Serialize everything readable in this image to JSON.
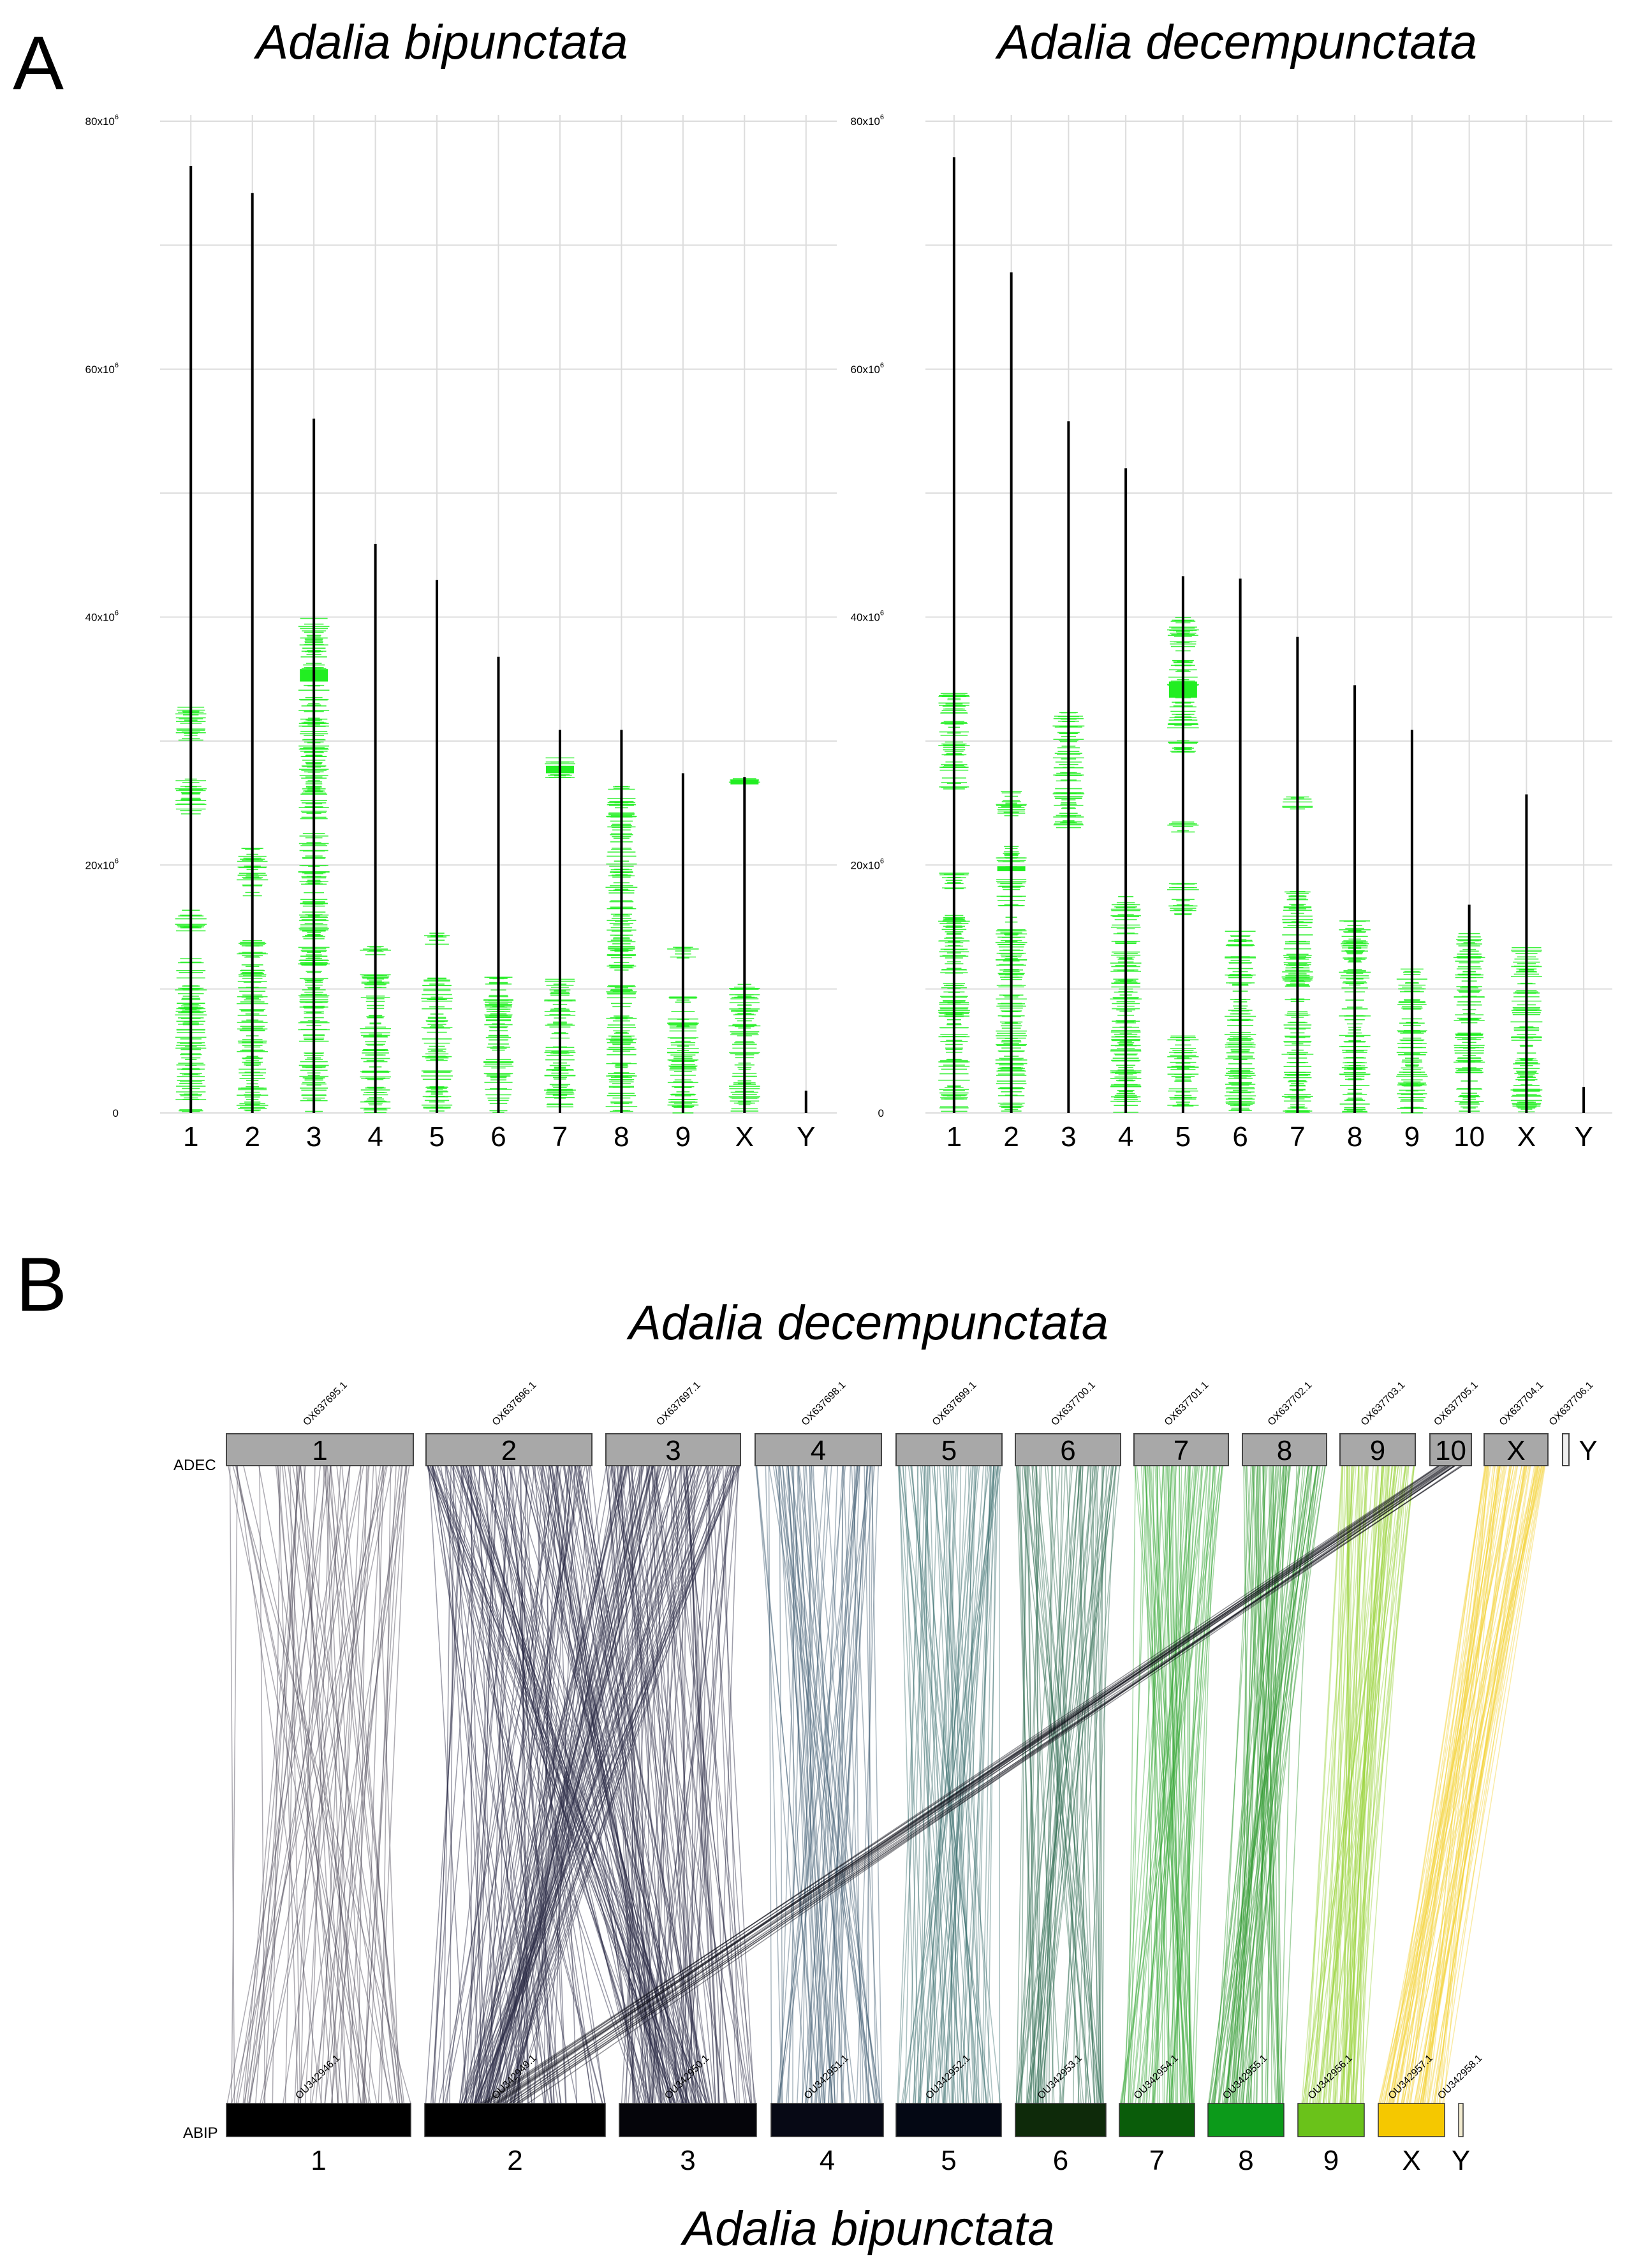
{
  "panels": {
    "a_label": "A",
    "b_label": "B"
  },
  "chart_data": [
    {
      "type": "chromosome_density",
      "title": "Adalia bipunctata",
      "ylim": [
        0,
        80000000
      ],
      "ytick_values": [
        0,
        20000000,
        40000000,
        60000000,
        80000000
      ],
      "ytick_labels": [
        "0",
        "20x10",
        "40x10",
        "60x10",
        "80x10"
      ],
      "ytick_exponent": "6",
      "categories": [
        "1",
        "2",
        "3",
        "4",
        "5",
        "6",
        "7",
        "8",
        "9",
        "X",
        "Y"
      ],
      "lengths": [
        76400000,
        74200000,
        56000000,
        45900000,
        43000000,
        36800000,
        30900000,
        30900000,
        27400000,
        27100000,
        1800000
      ],
      "marker_color": "#22ee22",
      "marker_bands": [
        {
          "chrom": "1",
          "ranges": [
            [
              0,
              12500000
            ],
            [
              14500000,
              16500000
            ],
            [
              24000000,
              27000000
            ],
            [
              30000000,
              33000000
            ]
          ]
        },
        {
          "chrom": "2",
          "ranges": [
            [
              0,
              14000000
            ],
            [
              17500000,
              21500000
            ]
          ]
        },
        {
          "chrom": "3",
          "ranges": [
            [
              0,
              13500000
            ],
            [
              14000000,
              40000000
            ]
          ],
          "dense": [
            34800000,
            35800000
          ]
        },
        {
          "chrom": "4",
          "ranges": [
            [
              0,
              11500000
            ],
            [
              12500000,
              13500000
            ]
          ]
        },
        {
          "chrom": "5",
          "ranges": [
            [
              0,
              11000000
            ],
            [
              13500000,
              14500000
            ]
          ]
        },
        {
          "chrom": "6",
          "ranges": [
            [
              0,
              11000000
            ]
          ]
        },
        {
          "chrom": "7",
          "ranges": [
            [
              0,
              11000000
            ],
            [
              27000000,
              28800000
            ]
          ],
          "dense": [
            27400000,
            28000000
          ]
        },
        {
          "chrom": "8",
          "ranges": [
            [
              0,
              10500000
            ],
            [
              11500000,
              26500000
            ]
          ]
        },
        {
          "chrom": "9",
          "ranges": [
            [
              0,
              9500000
            ],
            [
              12500000,
              13500000
            ]
          ]
        },
        {
          "chrom": "X",
          "ranges": [
            [
              0,
              10500000
            ],
            [
              26500000,
              27000000
            ]
          ],
          "dense": [
            26500000,
            26900000
          ]
        }
      ]
    },
    {
      "type": "chromosome_density",
      "title": "Adalia decempunctata",
      "ylim": [
        0,
        80000000
      ],
      "ytick_values": [
        0,
        20000000,
        40000000,
        60000000,
        80000000
      ],
      "ytick_labels": [
        "0",
        "20x10",
        "40x10",
        "60x10",
        "80x10"
      ],
      "ytick_exponent": "6",
      "categories": [
        "1",
        "2",
        "3",
        "4",
        "5",
        "6",
        "7",
        "8",
        "9",
        "10",
        "X",
        "Y"
      ],
      "lengths": [
        77100000,
        67800000,
        55800000,
        52000000,
        43300000,
        43100000,
        38400000,
        34500000,
        30900000,
        16800000,
        25700000,
        2100000
      ],
      "marker_color": "#22ee22",
      "marker_bands": [
        {
          "chrom": "1",
          "ranges": [
            [
              0,
              16000000
            ],
            [
              18000000,
              19500000
            ],
            [
              26000000,
              34000000
            ]
          ]
        },
        {
          "chrom": "2",
          "ranges": [
            [
              0,
              21500000
            ],
            [
              23500000,
              26000000
            ]
          ],
          "dense": [
            19500000,
            19900000
          ]
        },
        {
          "chrom": "3",
          "ranges": [
            [
              23000000,
              32500000
            ]
          ]
        },
        {
          "chrom": "4",
          "ranges": [
            [
              0,
              17500000
            ]
          ]
        },
        {
          "chrom": "5",
          "ranges": [
            [
              0,
              6500000
            ],
            [
              16000000,
              18500000
            ],
            [
              22500000,
              23500000
            ],
            [
              28500000,
              40000000
            ]
          ],
          "dense": [
            33500000,
            34800000
          ]
        },
        {
          "chrom": "6",
          "ranges": [
            [
              0,
              15000000
            ]
          ]
        },
        {
          "chrom": "7",
          "ranges": [
            [
              0,
              18000000
            ],
            [
              24500000,
              25500000
            ]
          ]
        },
        {
          "chrom": "8",
          "ranges": [
            [
              0,
              15500000
            ]
          ]
        },
        {
          "chrom": "9",
          "ranges": [
            [
              0,
              12000000
            ]
          ]
        },
        {
          "chrom": "10",
          "ranges": [
            [
              0,
              14500000
            ]
          ]
        },
        {
          "chrom": "X",
          "ranges": [
            [
              0,
              13500000
            ]
          ]
        }
      ]
    },
    {
      "type": "synteny",
      "title_top": "Adalia decempunctata",
      "title_bottom": "Adalia bipunctata",
      "top_label": "ADEC",
      "bottom_label": "ABIP",
      "top_chromosomes": [
        {
          "label": "1",
          "acc": "OX637695.1",
          "length": 77100000
        },
        {
          "label": "2",
          "acc": "OX637696.1",
          "length": 67800000
        },
        {
          "label": "3",
          "acc": "OX637697.1",
          "length": 55800000
        },
        {
          "label": "4",
          "acc": "OX637698.1",
          "length": 52000000
        },
        {
          "label": "5",
          "acc": "OX637699.1",
          "length": 43300000
        },
        {
          "label": "6",
          "acc": "OX637700.1",
          "length": 43100000
        },
        {
          "label": "7",
          "acc": "OX637701.1",
          "length": 38400000
        },
        {
          "label": "8",
          "acc": "OX637702.1",
          "length": 34500000
        },
        {
          "label": "9",
          "acc": "OX637703.1",
          "length": 30900000
        },
        {
          "label": "10",
          "acc": "OX637705.1",
          "length": 16800000
        },
        {
          "label": "X",
          "acc": "OX637704.1",
          "length": 25700000
        },
        {
          "label": "Y",
          "acc": "OX637706.1",
          "length": 2100000
        }
      ],
      "bottom_chromosomes": [
        {
          "label": "1",
          "acc": "OU342946.1",
          "length": 76400000,
          "color": "#000000"
        },
        {
          "label": "2",
          "acc": "OU342949.1",
          "length": 74200000,
          "color": "#000000"
        },
        {
          "label": "3",
          "acc": "OU342950.1",
          "length": 56000000,
          "color": "#05050a"
        },
        {
          "label": "4",
          "acc": "OU342951.1",
          "length": 45900000,
          "color": "#070915"
        },
        {
          "label": "5",
          "acc": "OU342952.1",
          "length": 43000000,
          "color": "#040814"
        },
        {
          "label": "6",
          "acc": "OU342953.1",
          "length": 36800000,
          "color": "#0e2a0a"
        },
        {
          "label": "7",
          "acc": "OU342954.1",
          "length": 30900000,
          "color": "#0a5c0a"
        },
        {
          "label": "8",
          "acc": "OU342955.1",
          "length": 30900000,
          "color": "#0c9a1a"
        },
        {
          "label": "9",
          "acc": "OU342956.1",
          "length": 27400000,
          "color": "#6ac21a"
        },
        {
          "label": "X",
          "acc": "OU342957.1",
          "length": 27100000,
          "color": "#f5c800"
        },
        {
          "label": "Y",
          "acc": "OU342958.1",
          "length": 1800000,
          "color": "#f3ecd0"
        }
      ],
      "links": [
        {
          "from": "1",
          "to": "1",
          "color": "#4a4455"
        },
        {
          "from": "2",
          "to": "2",
          "color": "#1e1e3c"
        },
        {
          "from": "2",
          "to": "3",
          "color": "#1e1e3c"
        },
        {
          "from": "3",
          "to": "2",
          "color": "#2a2a44"
        },
        {
          "from": "3",
          "to": "3",
          "color": "#2a2a44"
        },
        {
          "from": "4",
          "to": "4",
          "color": "#3f5a70"
        },
        {
          "from": "5",
          "to": "5",
          "color": "#3f7070"
        },
        {
          "from": "6",
          "to": "6",
          "color": "#2d6a50"
        },
        {
          "from": "7",
          "to": "7",
          "color": "#3aa83a"
        },
        {
          "from": "8",
          "to": "8",
          "color": "#2e9a2e"
        },
        {
          "from": "9",
          "to": "9",
          "color": "#9ad23a"
        },
        {
          "from": "10",
          "to": "2",
          "color": "#101018"
        },
        {
          "from": "X",
          "to": "X",
          "color": "#f4d23a"
        }
      ]
    }
  ]
}
